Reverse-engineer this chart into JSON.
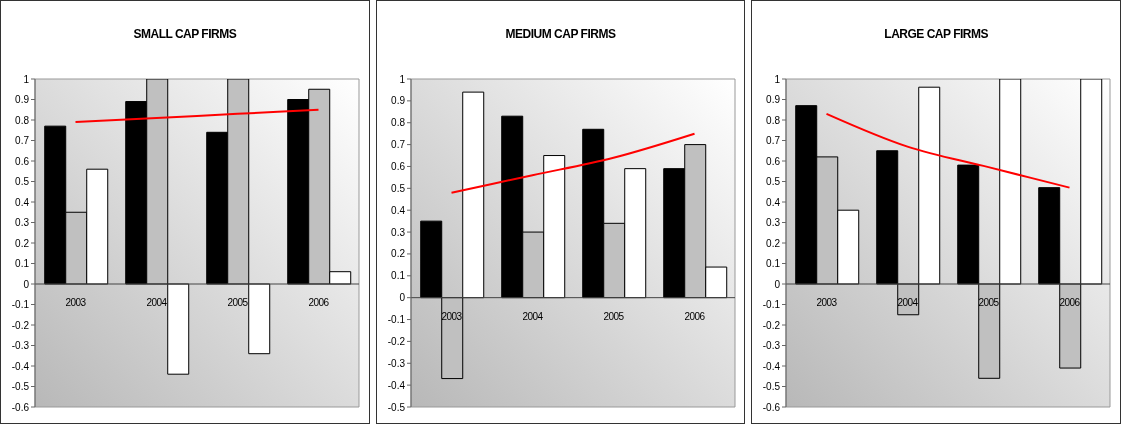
{
  "chart_data": [
    {
      "type": "bar",
      "title": "SMALL CAP FIRMS",
      "categories": [
        "2003",
        "2004",
        "2005",
        "2006"
      ],
      "ylim": [
        -0.6,
        1
      ],
      "yticks": [
        -0.6,
        -0.5,
        -0.4,
        -0.3,
        -0.2,
        -0.1,
        0,
        0.1,
        0.2,
        0.3,
        0.4,
        0.5,
        0.6,
        0.7,
        0.8,
        0.9,
        1
      ],
      "grid": false,
      "legend": false,
      "marker": "none",
      "series": [
        {
          "color": "#000000",
          "values": [
            0.77,
            0.89,
            0.74,
            0.9
          ]
        },
        {
          "color": "#c0c0c0",
          "values": [
            0.35,
            1,
            1,
            0.95
          ]
        },
        {
          "color": "#ffffff",
          "values": [
            0.56,
            -0.44,
            -0.34,
            0.06
          ]
        },
        {
          "type": "line",
          "color": "#ff0000",
          "values": [
            0.79,
            0.81,
            0.83,
            0.85
          ]
        }
      ]
    },
    {
      "type": "bar",
      "title": "MEDIUM CAP FIRMS",
      "categories": [
        "2003",
        "2004",
        "2005",
        "2006"
      ],
      "ylim": [
        -0.5,
        1
      ],
      "yticks": [
        -0.5,
        -0.4,
        -0.3,
        -0.2,
        -0.1,
        0,
        0.1,
        0.2,
        0.3,
        0.4,
        0.5,
        0.6,
        0.7,
        0.8,
        0.9,
        1
      ],
      "grid": false,
      "legend": false,
      "marker": "none",
      "series": [
        {
          "color": "#000000",
          "values": [
            0.35,
            0.83,
            0.77,
            0.59
          ]
        },
        {
          "color": "#c0c0c0",
          "values": [
            -0.37,
            0.3,
            0.34,
            0.7
          ]
        },
        {
          "color": "#ffffff",
          "values": [
            0.94,
            0.65,
            0.59,
            0.14
          ]
        },
        {
          "type": "line",
          "color": "#ff0000",
          "values": [
            0.48,
            0.56,
            0.64,
            0.75
          ]
        }
      ]
    },
    {
      "type": "bar",
      "title": "LARGE CAP FIRMS",
      "categories": [
        "2003",
        "2004",
        "2005",
        "2006"
      ],
      "ylim": [
        -0.6,
        1
      ],
      "yticks": [
        -0.6,
        -0.5,
        -0.4,
        -0.3,
        -0.2,
        -0.1,
        0,
        0.1,
        0.2,
        0.3,
        0.4,
        0.5,
        0.6,
        0.7,
        0.8,
        0.9,
        1
      ],
      "grid": false,
      "legend": false,
      "marker": "none",
      "series": [
        {
          "color": "#000000",
          "values": [
            0.87,
            0.65,
            0.58,
            0.47
          ]
        },
        {
          "color": "#c0c0c0",
          "values": [
            0.62,
            -0.15,
            -0.46,
            -0.41
          ]
        },
        {
          "color": "#ffffff",
          "values": [
            0.36,
            0.96,
            1,
            1
          ]
        },
        {
          "type": "line",
          "color": "#ff0000",
          "values": [
            0.83,
            0.67,
            0.57,
            0.47
          ]
        }
      ]
    }
  ]
}
